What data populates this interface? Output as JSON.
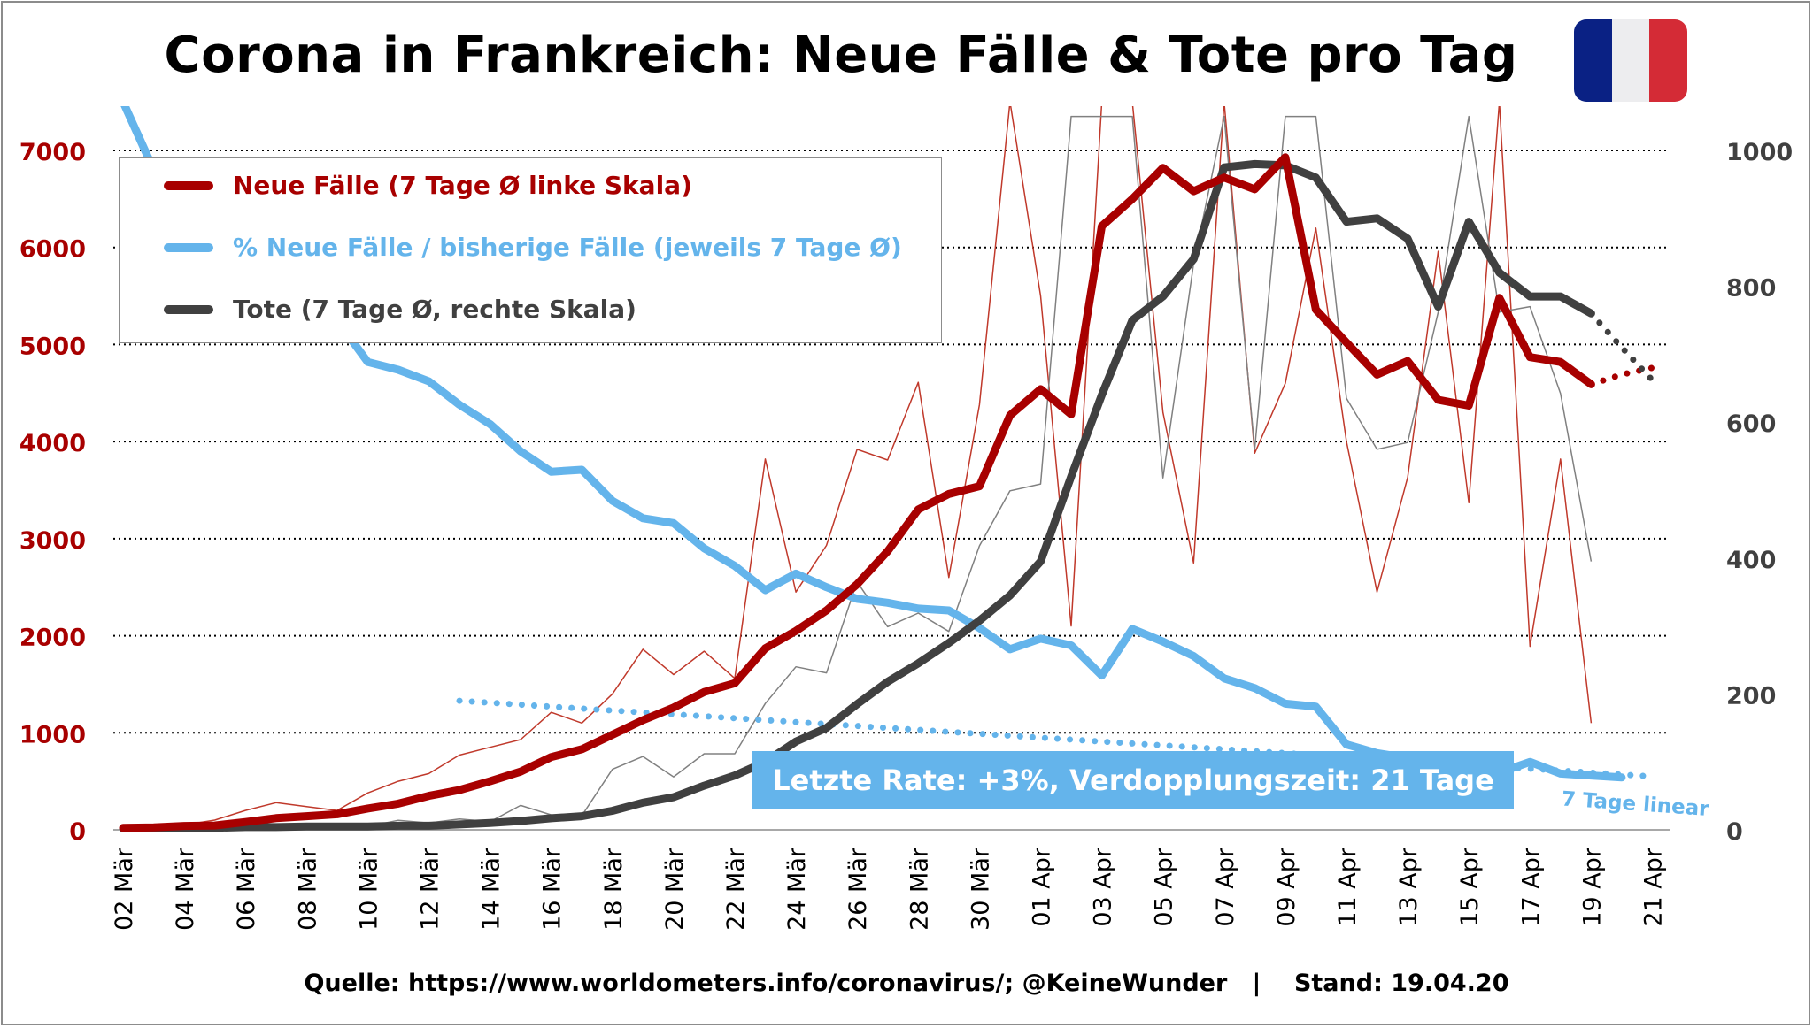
{
  "title": "Corona in Frankreich: Neue Fälle & Tote pro Tag",
  "source": "Quelle: https://www.worldometers.info/coronavirus/; @KeineWunder   |    Stand: 19.04.20",
  "annotation": "Letzte Rate: +3%, Verdopplungszeit: 21 Tage",
  "trend_label": "7 Tage linear",
  "flag_colors": [
    "#0a2184",
    "#ededef",
    "#d42b36"
  ],
  "legend": [
    {
      "label": "Neue Fälle (7 Tage Ø linke Skala)",
      "color": "#a80000"
    },
    {
      "label": "% Neue Fälle / bisherige Fälle (jeweils 7 Tage Ø)",
      "color": "#64b4eb"
    },
    {
      "label": "Tote (7 Tage Ø, rechte Skala)",
      "color": "#404040"
    }
  ],
  "chart_data": {
    "type": "line",
    "x": [
      "02 Mär",
      "03 Mär",
      "04 Mär",
      "05 Mär",
      "06 Mär",
      "07 Mär",
      "08 Mär",
      "09 Mär",
      "10 Mär",
      "11 Mär",
      "12 Mär",
      "13 Mär",
      "14 Mär",
      "15 Mär",
      "16 Mär",
      "17 Mär",
      "18 Mär",
      "19 Mär",
      "20 Mär",
      "21 Mär",
      "22 Mär",
      "23 Mär",
      "24 Mär",
      "25 Mär",
      "26 Mär",
      "27 Mär",
      "28 Mär",
      "29 Mär",
      "30 Mär",
      "31 Mär",
      "01 Apr",
      "02 Apr",
      "03 Apr",
      "04 Apr",
      "05 Apr",
      "06 Apr",
      "07 Apr",
      "08 Apr",
      "09 Apr",
      "10 Apr",
      "11 Apr",
      "12 Apr",
      "13 Apr",
      "14 Apr",
      "15 Apr",
      "16 Apr",
      "17 Apr",
      "18 Apr",
      "19 Apr",
      "20 Apr",
      "21 Apr"
    ],
    "x_tick_labels": [
      "02 Mär",
      "04 Mär",
      "06 Mär",
      "08 Mär",
      "10 Mär",
      "12 Mär",
      "14 Mär",
      "16 Mär",
      "18 Mär",
      "20 Mär",
      "22 Mär",
      "24 Mär",
      "26 Mär",
      "28 Mär",
      "30 Mär",
      "01 Apr",
      "03 Apr",
      "05 Apr",
      "07 Apr",
      "09 Apr",
      "11 Apr",
      "13 Apr",
      "15 Apr",
      "17 Apr",
      "19 Apr",
      "21 Apr"
    ],
    "y_left": {
      "range": [
        0,
        7000
      ],
      "ticks": [
        0,
        1000,
        2000,
        3000,
        4000,
        5000,
        6000,
        7000
      ],
      "color": "#a80000"
    },
    "y_right": {
      "range": [
        0,
        1000
      ],
      "ticks": [
        0,
        200,
        400,
        600,
        800,
        1000
      ],
      "color": "#404040"
    },
    "grid": true,
    "legend_position": "top-left",
    "series": [
      {
        "name": "Neue Fälle (7 Tage Ø linke Skala)",
        "axis": "left",
        "color": "#a80000",
        "style": "thick",
        "values": [
          20,
          25,
          40,
          45,
          80,
          120,
          140,
          160,
          220,
          270,
          350,
          410,
          500,
          600,
          750,
          830,
          980,
          1130,
          1260,
          1420,
          1510,
          1870,
          2050,
          2260,
          2530,
          2870,
          3300,
          3460,
          3540,
          4270,
          4540,
          4280,
          6220,
          6500,
          6820,
          6580,
          6720,
          6600,
          6930,
          5360,
          5020,
          4690,
          4830,
          4430,
          4370,
          5480,
          4870,
          4820,
          4590,
          null,
          null
        ]
      },
      {
        "name": "Neue Fälle (täglich)",
        "axis": "left",
        "color": "#c0392b",
        "style": "thin",
        "values": [
          20,
          30,
          50,
          100,
          200,
          280,
          240,
          200,
          380,
          500,
          580,
          770,
          850,
          930,
          1210,
          1100,
          1400,
          1860,
          1600,
          1840,
          1560,
          3820,
          2450,
          2930,
          3920,
          3810,
          4610,
          2600,
          4380,
          7500,
          5500,
          2100,
          7500,
          7500,
          4300,
          2750,
          7500,
          3880,
          4600,
          6200,
          4000,
          2450,
          3630,
          5960,
          3370,
          7500,
          1890,
          3820,
          1100,
          null,
          null
        ]
      },
      {
        "name": "Tote (7 Tage Ø, rechte Skala)",
        "axis": "right",
        "color": "#404040",
        "style": "thick",
        "values": [
          2,
          2,
          3,
          3,
          4,
          4,
          5,
          5,
          5,
          6,
          6,
          8,
          10,
          13,
          17,
          20,
          28,
          40,
          48,
          65,
          80,
          100,
          130,
          150,
          185,
          218,
          245,
          275,
          308,
          345,
          395,
          520,
          640,
          750,
          785,
          840,
          975,
          980,
          978,
          960,
          895,
          900,
          870,
          770,
          895,
          820,
          785,
          785,
          760,
          null,
          null
        ]
      },
      {
        "name": "Tote (täglich)",
        "axis": "right",
        "color": "#808080",
        "style": "thin",
        "values": [
          0,
          0,
          2,
          3,
          4,
          5,
          6,
          2,
          5,
          14,
          10,
          16,
          12,
          36,
          22,
          21,
          89,
          108,
          78,
          112,
          112,
          186,
          240,
          231,
          365,
          299,
          319,
          292,
          418,
          499,
          509,
          1050,
          1050,
          1050,
          518,
          833,
          1050,
          560,
          1050,
          1050,
          635,
          560,
          570,
          762,
          1050,
          762,
          770,
          642,
          395,
          null,
          null
        ]
      },
      {
        "name": "% Neue Fälle / bisherige Fälle (jeweils 7 Tage Ø)",
        "axis": "left",
        "color": "#64b4eb",
        "style": "thick",
        "values": [
          7500,
          6800,
          6500,
          6200,
          5900,
          5600,
          5300,
          5250,
          4820,
          4740,
          4620,
          4380,
          4180,
          3900,
          3690,
          3710,
          3390,
          3210,
          3160,
          2900,
          2720,
          2470,
          2640,
          2500,
          2380,
          2340,
          2280,
          2260,
          2080,
          1860,
          1970,
          1900,
          1590,
          2070,
          1940,
          1790,
          1560,
          1460,
          1300,
          1270,
          880,
          790,
          740,
          700,
          640,
          590,
          700,
          580,
          560,
          540,
          null
        ]
      },
      {
        "name": "Neue Fälle Prognose",
        "axis": "left",
        "color": "#a80000",
        "style": "dotted",
        "values": [
          null,
          null,
          null,
          null,
          null,
          null,
          null,
          null,
          null,
          null,
          null,
          null,
          null,
          null,
          null,
          null,
          null,
          null,
          null,
          null,
          null,
          null,
          null,
          null,
          null,
          null,
          null,
          null,
          null,
          null,
          null,
          null,
          null,
          null,
          null,
          null,
          null,
          null,
          null,
          null,
          null,
          null,
          null,
          null,
          null,
          null,
          null,
          null,
          4590,
          4690,
          4760
        ]
      },
      {
        "name": "Tote Prognose",
        "axis": "right",
        "color": "#404040",
        "style": "dotted",
        "values": [
          null,
          null,
          null,
          null,
          null,
          null,
          null,
          null,
          null,
          null,
          null,
          null,
          null,
          null,
          null,
          null,
          null,
          null,
          null,
          null,
          null,
          null,
          null,
          null,
          null,
          null,
          null,
          null,
          null,
          null,
          null,
          null,
          null,
          null,
          null,
          null,
          null,
          null,
          null,
          null,
          null,
          null,
          null,
          null,
          null,
          null,
          null,
          null,
          760,
          710,
          662
        ]
      },
      {
        "name": "7 Tage linear",
        "axis": "left",
        "color": "#64b4eb",
        "style": "dotted",
        "values": [
          null,
          null,
          null,
          null,
          null,
          null,
          null,
          null,
          null,
          null,
          null,
          1330,
          1310,
          1290,
          1270,
          1250,
          1230,
          1210,
          1190,
          1170,
          1150,
          1130,
          1110,
          1090,
          1070,
          1050,
          1030,
          1010,
          990,
          970,
          950,
          930,
          910,
          890,
          870,
          850,
          830,
          810,
          790,
          770,
          750,
          730,
          710,
          690,
          670,
          650,
          630,
          610,
          590,
          570,
          550
        ]
      }
    ]
  }
}
